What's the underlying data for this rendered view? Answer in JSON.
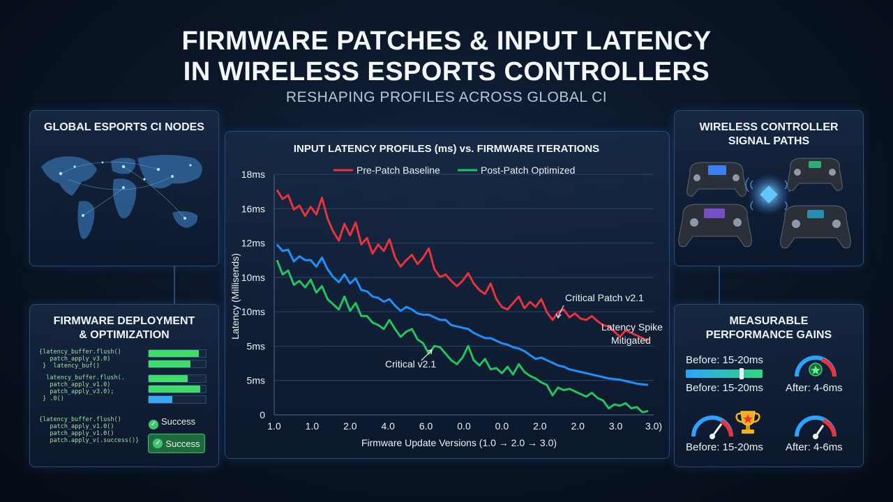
{
  "header": {
    "title_line1": "FIRMWARE PATCHES & INPUT LATENCY",
    "title_line2": "IN WIRELESS ESPORTS CONTROLLERS",
    "subtitle": "RESHAPING PROFILES ACROSS GLOBAL CI"
  },
  "panels": {
    "global_nodes": {
      "title": "GLOBAL ESPORTS CI NODES"
    },
    "deployment": {
      "title_line1": "FIRMWARE DEPLOYMENT",
      "title_line2": "& OPTIMIZATION",
      "code_block_1": "{latency_buffer.flush()\n   patch_apply_v3.0)\n }  latency_buf()",
      "code_block_2": "  latency_buffer.flush(.\n   patch_apply_v1.0)\n   patch_apply_v3.0);\n } .0()",
      "code_block_3": "{latency_buffer.flush()\n   patch_apply_v1.0()\n   patch_apply_v1.0()\n   patch.apply_v(.success()}",
      "progress": [
        0.88,
        0.73,
        0.68,
        0.9,
        0.42
      ],
      "success_text": "Success",
      "success_badge": "Success"
    },
    "signal_paths": {
      "title_line1": "WIRELESS CONTROLLER",
      "title_line2": "SIGNAL PATHS"
    },
    "gains": {
      "title_line1": "MEASURABLE",
      "title_line2": "PERFORMANCE GAINS",
      "before_1": "Before: 15-20ms",
      "before_2": "Before: 15-20ms",
      "before_3": "Before: 15-20ms",
      "after_1": "After: 4-6ms",
      "after_2": "After: 4-6ms"
    }
  },
  "chart_data": {
    "type": "line",
    "title": "INPUT LATENCY PROFILES (ms) vs. FIRMWARE ITERATIONS",
    "xlabel": "Firmware Update Versions (1.0 → 2.0 → 3.0)",
    "ylabel": "Latency (Millisends)",
    "x_tick_labels": [
      "1.0",
      "1.0",
      "2.0",
      "4.0",
      "6.0",
      "0.0",
      "0.0",
      "2.0",
      "2.0",
      "3.0",
      "3.0)"
    ],
    "y_tick_labels": [
      "0",
      "5ms",
      "5ms",
      "10ms",
      "10ms",
      "12ms",
      "16ms",
      "18ms"
    ],
    "legend": [
      "Pre-Patch Baseline",
      "Post-Patch Optimized"
    ],
    "legend_position": "top",
    "grid": true,
    "annotations": [
      "Critical Patch v2.1",
      "Latency Spike",
      "Mitigated",
      "Critical v2.1"
    ],
    "series": [
      {
        "name": "Pre-Patch Baseline",
        "color": "#e8333b",
        "values": [
          17.3,
          16.6,
          16.9,
          15.8,
          16.1,
          15.3,
          16.0,
          15.4,
          16.7,
          15.1,
          14.1,
          13.4,
          14.7,
          13.8,
          14.8,
          13.1,
          13.6,
          12.4,
          13.1,
          12.6,
          13.5,
          12.1,
          11.4,
          11.9,
          12.3,
          11.6,
          12.1,
          12.8,
          11.2,
          10.6,
          10.8,
          10.3,
          9.9,
          10.3,
          10.9,
          10.1,
          9.6,
          9.3,
          10.1,
          8.9,
          8.3,
          8.1,
          8.6,
          9.1,
          8.2,
          8.7,
          8.3,
          8.9,
          7.9,
          7.3,
          7.9,
          8.1,
          7.5,
          7.8,
          7.4,
          7.3,
          7.6,
          7.2,
          6.9,
          6.8,
          6.4,
          6.0,
          6.5,
          6.3,
          6.1,
          5.9,
          5.7
        ]
      },
      {
        "name": "Baseline",
        "color": "#1e90ff",
        "values": [
          13.1,
          12.6,
          12.7,
          11.8,
          12.2,
          11.9,
          11.9,
          11.4,
          12.1,
          11.2,
          10.6,
          10.2,
          10.8,
          10.1,
          10.5,
          9.6,
          9.5,
          9.1,
          9.0,
          8.7,
          8.9,
          8.4,
          8.0,
          8.3,
          8.1,
          7.8,
          7.7,
          7.7,
          7.5,
          7.3,
          7.3,
          6.9,
          6.8,
          6.7,
          6.6,
          6.3,
          6.1,
          5.9,
          5.9,
          5.7,
          5.5,
          5.4,
          5.2,
          5.1,
          4.9,
          4.6,
          4.3,
          4.4,
          4.2,
          4.0,
          3.8,
          3.7,
          3.5,
          3.4,
          3.3,
          3.2,
          3.1,
          3.0,
          2.9,
          2.8,
          2.75,
          2.7,
          2.6,
          2.5,
          2.4,
          2.35,
          2.3
        ]
      },
      {
        "name": "Post-Patch Optimized",
        "color": "#22c55e",
        "values": [
          11.9,
          10.8,
          11.1,
          10.0,
          10.3,
          9.8,
          10.4,
          9.4,
          9.9,
          8.9,
          8.5,
          8.1,
          9.1,
          8.0,
          8.6,
          7.6,
          7.6,
          7.1,
          6.9,
          6.6,
          7.3,
          6.6,
          6.0,
          6.4,
          6.6,
          5.8,
          5.5,
          4.7,
          5.3,
          5.2,
          4.7,
          4.2,
          3.9,
          4.4,
          5.3,
          4.2,
          3.8,
          4.3,
          3.5,
          3.6,
          3.2,
          3.7,
          3.1,
          3.9,
          3.3,
          3.0,
          2.8,
          2.5,
          2.3,
          1.5,
          2.1,
          1.9,
          2.0,
          1.8,
          1.6,
          1.4,
          1.7,
          1.3,
          1.1,
          0.5,
          0.8,
          0.7,
          0.9,
          0.5,
          0.6,
          0.2,
          0.3
        ]
      }
    ]
  }
}
